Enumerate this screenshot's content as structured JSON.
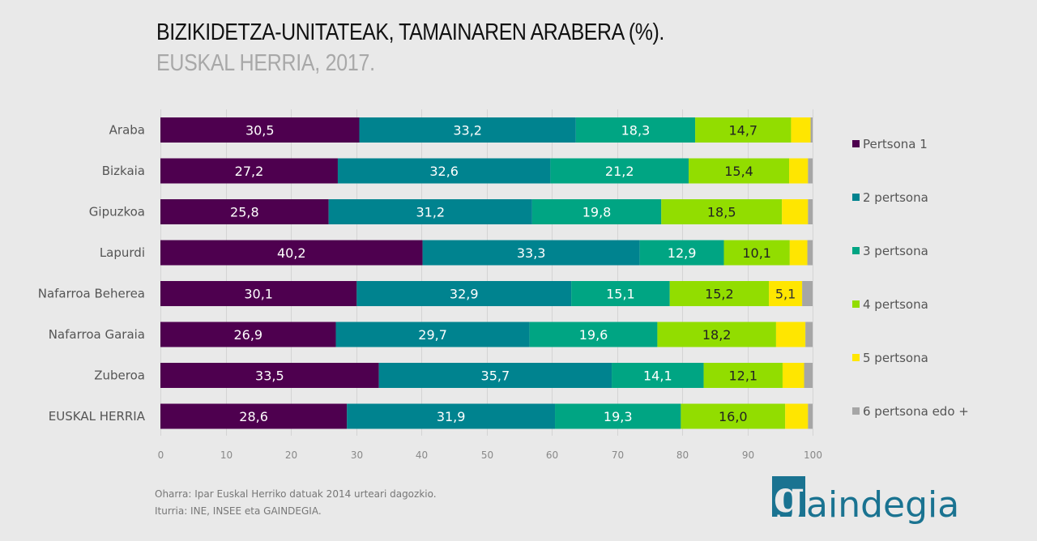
{
  "header": {
    "title": "BIZIKIDETZA-UNITATEAK, TAMAINAREN ARABERA (%).",
    "subtitle": "EUSKAL HERRIA, 2017."
  },
  "footer": {
    "note": "Oharra: Ipar Euskal Herriko datuak 2014 urteari  dagozkio.",
    "source": "Iturria: INE, INSEE eta GAINDEGIA."
  },
  "logo": {
    "mark": "g",
    "text": "aindegia",
    "color": "#1a7391"
  },
  "chart_data": {
    "type": "bar",
    "orientation": "horizontal",
    "stacked": true,
    "title": "BIZIKIDETZA-UNITATEAK, TAMAINAREN ARABERA (%).",
    "subtitle": "EUSKAL HERRIA, 2017.",
    "xlabel": "",
    "ylabel": "",
    "xlim": [
      0,
      100
    ],
    "xticks": [
      "0",
      "10",
      "20",
      "30",
      "40",
      "50",
      "60",
      "70",
      "80",
      "90",
      "100"
    ],
    "grid": true,
    "legend_position": "right",
    "categories": [
      "Araba",
      "Bizkaia",
      "Gipuzkoa",
      "Lapurdi",
      "Nafarroa Beherea",
      "Nafarroa Garaia",
      "Zuberoa",
      "EUSKAL HERRIA"
    ],
    "series": [
      {
        "name": "Pertsona 1",
        "color": "#4e004f",
        "label_color": "#ffffff",
        "values": [
          30.5,
          27.2,
          25.8,
          40.2,
          30.1,
          26.9,
          33.5,
          28.6
        ],
        "labels": [
          "30,5",
          "27,2",
          "25,8",
          "40,2",
          "30,1",
          "26,9",
          "33,5",
          "28,6"
        ]
      },
      {
        "name": "2 pertsona",
        "color": "#00838f",
        "label_color": "#ffffff",
        "values": [
          33.2,
          32.6,
          31.2,
          33.3,
          32.9,
          29.7,
          35.7,
          31.9
        ],
        "labels": [
          "33,2",
          "32,6",
          "31,2",
          "33,3",
          "32,9",
          "29,7",
          "35,7",
          "31,9"
        ]
      },
      {
        "name": "3 pertsona",
        "color": "#00a583",
        "label_color": "#ffffff",
        "values": [
          18.3,
          21.2,
          19.8,
          12.9,
          15.1,
          19.6,
          14.1,
          19.3
        ],
        "labels": [
          "18,3",
          "21,2",
          "19,8",
          "12,9",
          "15,1",
          "19,6",
          "14,1",
          "19,3"
        ]
      },
      {
        "name": "4 pertsona",
        "color": "#92dd00",
        "label_color": "#222222",
        "values": [
          14.7,
          15.4,
          18.5,
          10.1,
          15.2,
          18.2,
          12.1,
          16.0
        ],
        "labels": [
          "14,7",
          "15,4",
          "18,5",
          "10,1",
          "15,2",
          "18,2",
          "12,1",
          "16,0"
        ]
      },
      {
        "name": "5 pertsona",
        "color": "#ffe600",
        "label_color": "#333333",
        "values": [
          3.0,
          2.9,
          4.0,
          2.7,
          5.1,
          4.5,
          3.3,
          3.5
        ],
        "labels": [
          "",
          "",
          "",
          "",
          "5,1",
          "",
          "",
          ""
        ]
      },
      {
        "name": "6 pertsona edo +",
        "color": "#a6a6a6",
        "label_color": "#333333",
        "values": [
          0.3,
          0.7,
          0.7,
          0.8,
          1.6,
          1.1,
          1.3,
          0.7
        ],
        "labels": [
          "",
          "",
          "",
          "",
          "",
          "",
          "",
          ""
        ]
      }
    ]
  }
}
